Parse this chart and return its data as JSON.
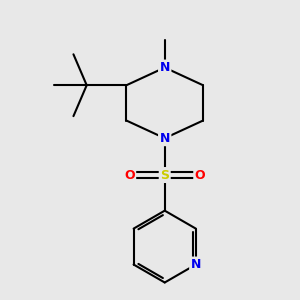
{
  "bg_color": "#e8e8e8",
  "bond_color": "#000000",
  "bond_width": 1.5,
  "atom_colors": {
    "N": "#0000ee",
    "S": "#cccc00",
    "O": "#ff0000",
    "C": "#000000"
  },
  "font_size_N": 9,
  "font_size_S": 9,
  "font_size_O": 9,
  "xlim": [
    0,
    10
  ],
  "ylim": [
    0,
    10
  ]
}
